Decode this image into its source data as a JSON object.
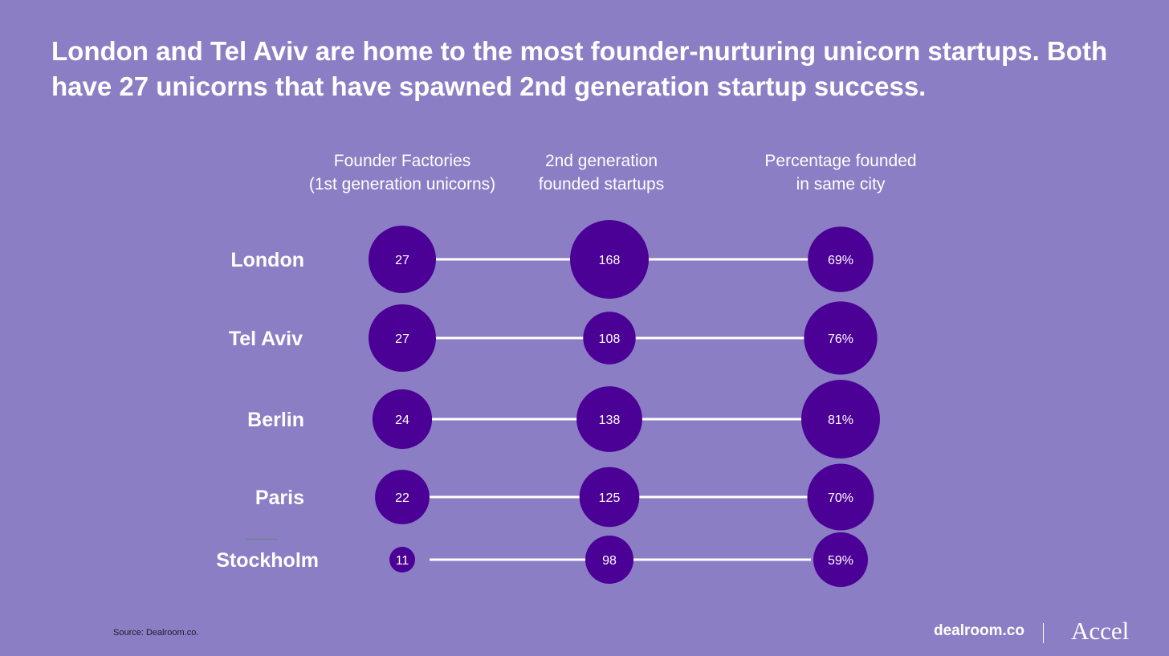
{
  "title": "London and Tel Aviv are home to the most founder-nurturing unicorn startups. Both have 27 unicorns that have spawned 2nd generation startup success.",
  "columns": [
    {
      "label": "Founder Factories\n(1st generation unicorns)"
    },
    {
      "label": "2nd generation\nfounded startups"
    },
    {
      "label": "Percentage founded\nin same city"
    }
  ],
  "chart_data": {
    "type": "bubble-table",
    "title": "London and Tel Aviv are home to the most founder-nurturing unicorn startups. Both have 27 unicorns that have spawned 2nd generation startup success.",
    "categories": [
      "London",
      "Tel Aviv",
      "Berlin",
      "Paris",
      "Stockholm"
    ],
    "series": [
      {
        "name": "Founder Factories (1st generation unicorns)",
        "values": [
          27,
          27,
          24,
          22,
          11
        ]
      },
      {
        "name": "2nd generation founded startups",
        "values": [
          168,
          108,
          138,
          125,
          98
        ]
      },
      {
        "name": "Percentage founded in same city",
        "values": [
          69,
          76,
          81,
          70,
          59
        ],
        "labels": [
          "69%",
          "76%",
          "81%",
          "70%",
          "59%"
        ]
      }
    ]
  },
  "colors": {
    "background": "#8b7ec4",
    "bubble": "#4b0096",
    "line": "#ffffff",
    "text": "#ffffff"
  },
  "footer": {
    "source": "Source: Dealroom.co.",
    "logo": "dealroom.co",
    "brand": "Accel"
  }
}
